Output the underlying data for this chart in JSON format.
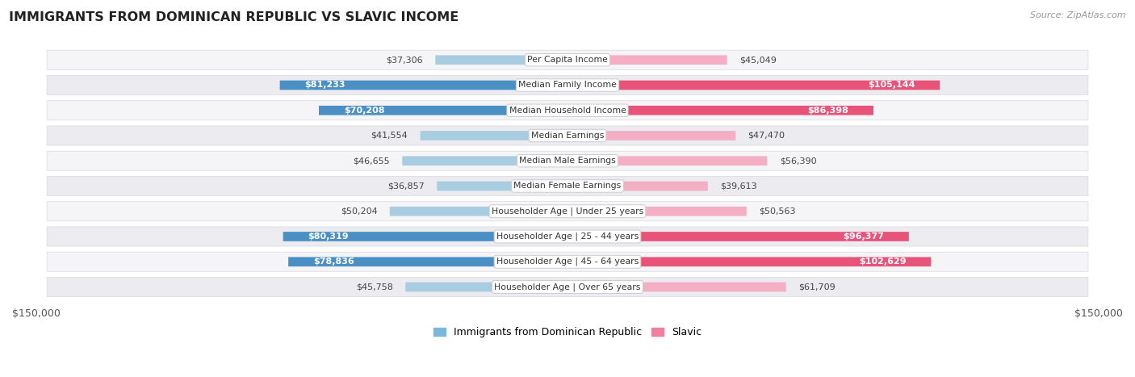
{
  "title": "IMMIGRANTS FROM DOMINICAN REPUBLIC VS SLAVIC INCOME",
  "source": "Source: ZipAtlas.com",
  "categories": [
    "Per Capita Income",
    "Median Family Income",
    "Median Household Income",
    "Median Earnings",
    "Median Male Earnings",
    "Median Female Earnings",
    "Householder Age | Under 25 years",
    "Householder Age | 25 - 44 years",
    "Householder Age | 45 - 64 years",
    "Householder Age | Over 65 years"
  ],
  "dominican": [
    37306,
    81233,
    70208,
    41554,
    46655,
    36857,
    50204,
    80319,
    78836,
    45758
  ],
  "slavic": [
    45049,
    105144,
    86398,
    47470,
    56390,
    39613,
    50563,
    96377,
    102629,
    61709
  ],
  "dominican_labels": [
    "$37,306",
    "$81,233",
    "$70,208",
    "$41,554",
    "$46,655",
    "$36,857",
    "$50,204",
    "$80,319",
    "$78,836",
    "$45,758"
  ],
  "slavic_labels": [
    "$45,049",
    "$105,144",
    "$86,398",
    "$47,470",
    "$56,390",
    "$39,613",
    "$50,563",
    "$96,377",
    "$102,629",
    "$61,709"
  ],
  "dominican_color_strong": "#4a90c4",
  "dominican_color_light": "#a8cce0",
  "slavic_color_strong": "#e8537a",
  "slavic_color_light": "#f4afc4",
  "threshold_strong": 65000,
  "max_val": 150000,
  "row_bg_even": "#f2f2f5",
  "row_bg_odd": "#eaeaef",
  "legend_dom_color": "#7ab8d8",
  "legend_slav_color": "#f07fa0"
}
